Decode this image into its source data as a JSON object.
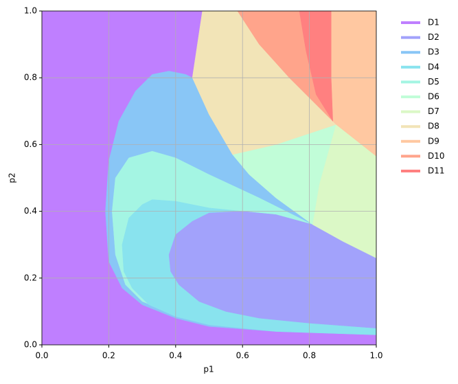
{
  "chart_data": {
    "type": "region",
    "xlabel": "p1",
    "ylabel": "p2",
    "xlim": [
      0,
      1
    ],
    "ylim": [
      0,
      1
    ],
    "xticks": [
      {
        "value": 0,
        "label": "0.0"
      },
      {
        "value": 0.2,
        "label": "0.2"
      },
      {
        "value": 0.4,
        "label": "0.4"
      },
      {
        "value": 0.6,
        "label": "0.6"
      },
      {
        "value": 0.8,
        "label": "0.8"
      },
      {
        "value": 1,
        "label": "1.0"
      }
    ],
    "yticks": [
      {
        "value": 0,
        "label": "0.0"
      },
      {
        "value": 0.2,
        "label": "0.2"
      },
      {
        "value": 0.4,
        "label": "0.4"
      },
      {
        "value": 0.6,
        "label": "0.6"
      },
      {
        "value": 0.8,
        "label": "0.8"
      },
      {
        "value": 1,
        "label": "1.0"
      }
    ],
    "grid": true,
    "legend": "outside-right",
    "series": [
      {
        "name": "D1",
        "color": "#bf7fff",
        "x": [
          0,
          1,
          1,
          0
        ],
        "y": [
          0,
          0,
          1,
          1
        ]
      },
      {
        "name": "D2",
        "color": "#a2a2fb",
        "x": [
          0.38,
          0.4,
          0.45,
          0.5,
          0.6,
          0.7,
          0.81,
          0.9,
          1,
          1,
          0.8,
          0.65,
          0.55,
          0.47,
          0.41,
          0.385
        ],
        "y": [
          0.27,
          0.33,
          0.37,
          0.395,
          0.4,
          0.39,
          0.36,
          0.31,
          0.26,
          0.05,
          0.065,
          0.08,
          0.1,
          0.13,
          0.18,
          0.22
        ]
      },
      {
        "name": "D3",
        "color": "#89c6f6",
        "x": [
          0.45,
          0.57,
          0.81,
          1,
          1,
          0.7,
          0.5,
          0.4,
          0.3,
          0.24,
          0.2,
          0.19,
          0.2,
          0.23,
          0.28,
          0.33,
          0.38,
          0.43
        ],
        "y": [
          0.8,
          0.57,
          0.36,
          0.25,
          0.03,
          0.04,
          0.055,
          0.08,
          0.12,
          0.17,
          0.25,
          0.4,
          0.55,
          0.67,
          0.76,
          0.81,
          0.82,
          0.81
        ]
      },
      {
        "name": "D4",
        "color": "#89e3ee",
        "x": [
          0.24,
          0.26,
          0.3,
          0.33,
          0.4,
          0.5,
          0.6,
          0.7,
          0.81,
          1,
          1,
          0.7,
          0.5,
          0.4,
          0.32,
          0.27,
          0.245
        ],
        "y": [
          0.3,
          0.38,
          0.42,
          0.435,
          0.43,
          0.41,
          0.4,
          0.39,
          0.36,
          0.25,
          0.03,
          0.04,
          0.06,
          0.085,
          0.12,
          0.17,
          0.22
        ]
      },
      {
        "name": "D5",
        "color": "#a4f5e3",
        "x": [
          0.21,
          0.22,
          0.26,
          0.33,
          0.4,
          0.5,
          0.65,
          0.81,
          1,
          1,
          0.7,
          0.5,
          0.4,
          0.3,
          0.25,
          0.22
        ],
        "y": [
          0.4,
          0.5,
          0.56,
          0.58,
          0.56,
          0.51,
          0.44,
          0.36,
          0.25,
          0.05,
          0.06,
          0.075,
          0.09,
          0.13,
          0.18,
          0.27
        ]
      },
      {
        "name": "D6",
        "color": "#c1fdd8",
        "x": [
          0.57,
          0.7,
          0.88,
          0.83,
          0.81,
          0.7,
          0.62
        ],
        "y": [
          0.57,
          0.6,
          0.66,
          0.48,
          0.36,
          0.44,
          0.51
        ]
      },
      {
        "name": "D7",
        "color": "#dbf8c6",
        "x": [
          0.81,
          0.83,
          0.88,
          1,
          1,
          0.9
        ],
        "y": [
          0.36,
          0.48,
          0.66,
          0.565,
          0.26,
          0.31
        ]
      },
      {
        "name": "D8",
        "color": "#f2e4b7",
        "x": [
          0.48,
          0.585,
          0.65,
          0.74,
          0.87,
          0.88,
          0.7,
          0.57,
          0.5,
          0.45
        ],
        "y": [
          1,
          1,
          0.9,
          0.8,
          0.67,
          0.66,
          0.6,
          0.57,
          0.69,
          0.8
        ]
      },
      {
        "name": "D9",
        "color": "#ffc8a1",
        "x": [
          0.865,
          1,
          1,
          0.88,
          0.87,
          0.865
        ],
        "y": [
          1,
          1,
          0.565,
          0.66,
          0.67,
          0.8
        ]
      },
      {
        "name": "D10",
        "color": "#ffa48b",
        "x": [
          0.585,
          0.77,
          0.79,
          0.82,
          0.87,
          0.74,
          0.65
        ],
        "y": [
          1,
          1,
          0.88,
          0.75,
          0.67,
          0.8,
          0.9
        ]
      },
      {
        "name": "D11",
        "color": "#ff8080",
        "x": [
          0.77,
          0.865,
          0.865,
          0.87,
          0.82,
          0.79
        ],
        "y": [
          1,
          1,
          0.8,
          0.67,
          0.75,
          0.88
        ]
      }
    ]
  }
}
